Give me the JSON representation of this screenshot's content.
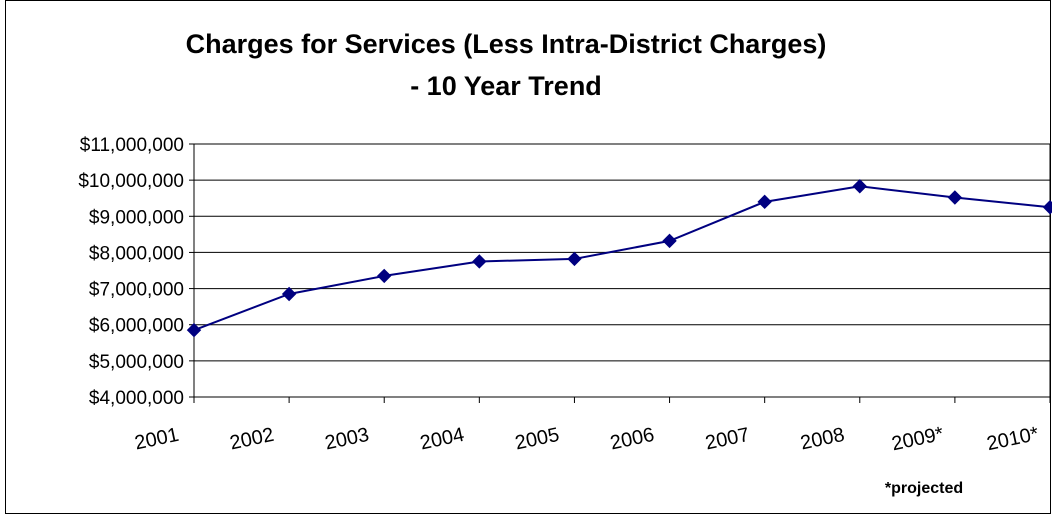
{
  "chart_data": {
    "type": "line",
    "title_line1": "Charges for Services (Less Intra-District Charges)",
    "title_line2": "- 10 Year Trend",
    "categories": [
      "2001",
      "2002",
      "2003",
      "2004",
      "2005",
      "2006",
      "2007",
      "2008",
      "2009*",
      "2010*"
    ],
    "series": [
      {
        "values": [
          5850000,
          6850000,
          7350000,
          7750000,
          7820000,
          8320000,
          9400000,
          9830000,
          9520000,
          9250000
        ],
        "color": "#000080"
      }
    ],
    "ylim": [
      4000000,
      11000000
    ],
    "yticks": [
      "$4,000,000",
      "$5,000,000",
      "$6,000,000",
      "$7,000,000",
      "$8,000,000",
      "$9,000,000",
      "$10,000,000",
      "$11,000,000"
    ],
    "ytick_values": [
      4000000,
      5000000,
      6000000,
      7000000,
      8000000,
      9000000,
      10000000,
      11000000
    ],
    "grid": true,
    "marker": "diamond",
    "footnote": "*projected"
  }
}
